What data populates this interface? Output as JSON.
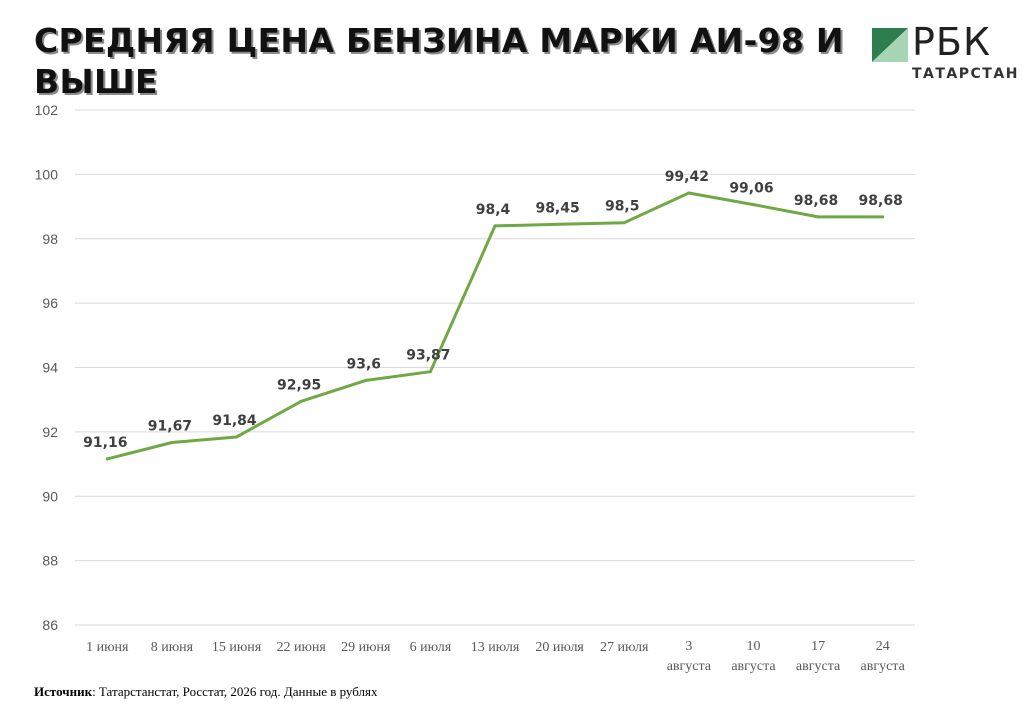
{
  "header": {
    "title": "СРЕДНЯЯ ЦЕНА БЕНЗИНА МАРКИ АИ-98 И ВЫШЕ",
    "logo_text": "РБК",
    "logo_region": "ТАТАРСТАН"
  },
  "footer": {
    "source_label": "Источник",
    "source_text": ": Татарстанстат, Росстат, 2026 год. Данные в рублях"
  },
  "colors": {
    "line": "#70a845",
    "grid": "#d9d9d9",
    "axis_text": "#595959",
    "label_text": "#404040",
    "logo_green": "#2e7d4f"
  },
  "chart_data": {
    "type": "line",
    "categories": [
      "1 июня",
      "8 июня",
      "15 июня",
      "22 июня",
      "29 июня",
      "6 июля",
      "13 июля",
      "20 июля",
      "27 июля",
      "3 августа",
      "10 августа",
      "17 августа",
      "24 августа"
    ],
    "series": [
      {
        "values": [
          91.16,
          91.67,
          91.84,
          92.95,
          93.6,
          93.87,
          98.4,
          98.45,
          98.5,
          99.42,
          99.06,
          98.68,
          98.68
        ],
        "labels": [
          "91,16",
          "91,67",
          "91,84",
          "92,95",
          "93,6",
          "93,87",
          "98,4",
          "98,45",
          "98,5",
          "99,42",
          "99,06",
          "98,68",
          "98,68"
        ]
      }
    ],
    "ylim": [
      86,
      102
    ],
    "yticks": [
      "86",
      "88",
      "90",
      "92",
      "94",
      "96",
      "98",
      "100",
      "102"
    ],
    "grid": true,
    "legend": "none",
    "data_labels": true
  }
}
